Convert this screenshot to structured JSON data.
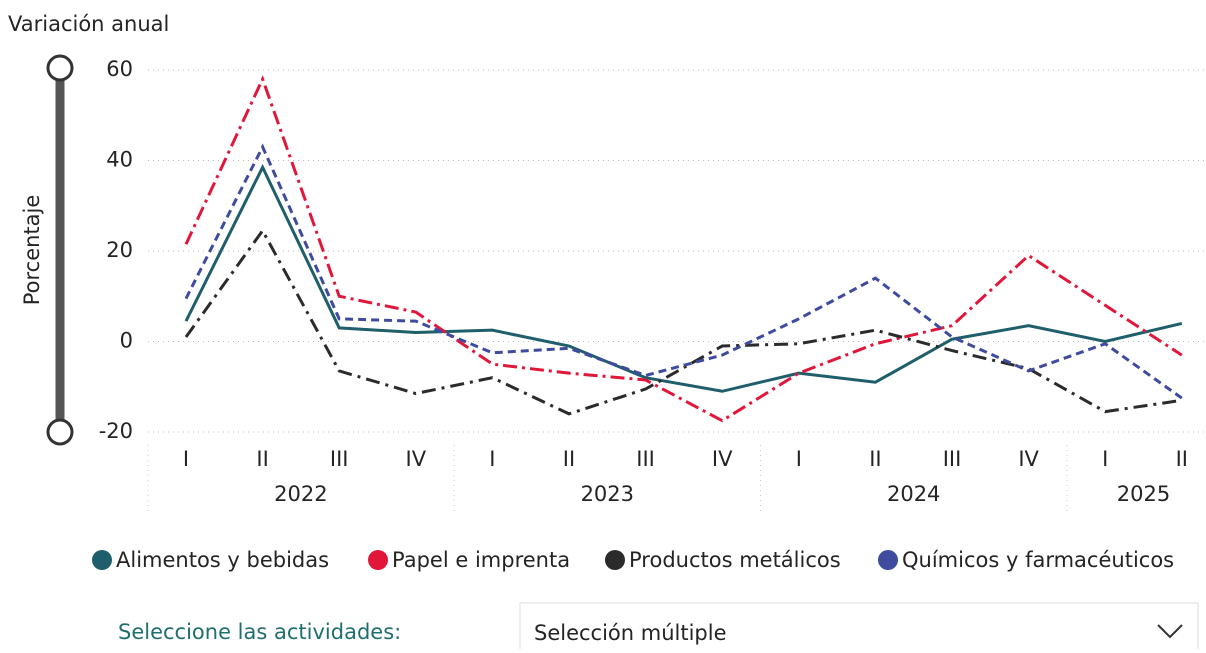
{
  "chart_data": {
    "type": "line",
    "subtitle": "Variación anual",
    "y_label": "Porcentaje",
    "categories": [
      "I",
      "II",
      "III",
      "IV",
      "I",
      "II",
      "III",
      "IV",
      "I",
      "II",
      "III",
      "IV",
      "I",
      "II"
    ],
    "year_groups": [
      {
        "label": "2022",
        "count": 4
      },
      {
        "label": "2023",
        "count": 4
      },
      {
        "label": "2024",
        "count": 4
      },
      {
        "label": "2025",
        "count": 2
      }
    ],
    "series": [
      {
        "name": "Alimentos y bebidas",
        "color": "#1f5f6b",
        "dash": "none",
        "values": [
          4.5,
          38.5,
          3,
          2,
          2.5,
          -1,
          -8,
          -11,
          -7,
          -9,
          0.5,
          3.5,
          0,
          4
        ]
      },
      {
        "name": "Papel e imprenta",
        "color": "#e0173a",
        "dash": "14 5 3 5",
        "values": [
          21.5,
          58,
          10,
          6.5,
          -5,
          -7,
          -8.5,
          -17.5,
          -7,
          -0.5,
          3.5,
          19,
          8,
          -3
        ]
      },
      {
        "name": "Productos metálicos",
        "color": "#2b2b2b",
        "dash": "14 6 3 6",
        "values": [
          1,
          24.5,
          -6.5,
          -11.5,
          -8,
          -16,
          -10.5,
          -1,
          -0.5,
          2.5,
          -2,
          -6,
          -15.5,
          -13
        ]
      },
      {
        "name": "Químicos y farmacéuticos",
        "color": "#3e4b9e",
        "dash": "8 5",
        "values": [
          9.5,
          43,
          5,
          4.5,
          -2.5,
          -1.5,
          -7.5,
          -3,
          5,
          14,
          1,
          -6.5,
          -0.5,
          -12.5
        ]
      }
    ],
    "ylim": [
      -20,
      60
    ],
    "yticks": [
      -20,
      0,
      20,
      40,
      60
    ],
    "grid": true
  },
  "filter": {
    "label": "Seleccione las actividades:",
    "value": "Selección múltiple"
  }
}
